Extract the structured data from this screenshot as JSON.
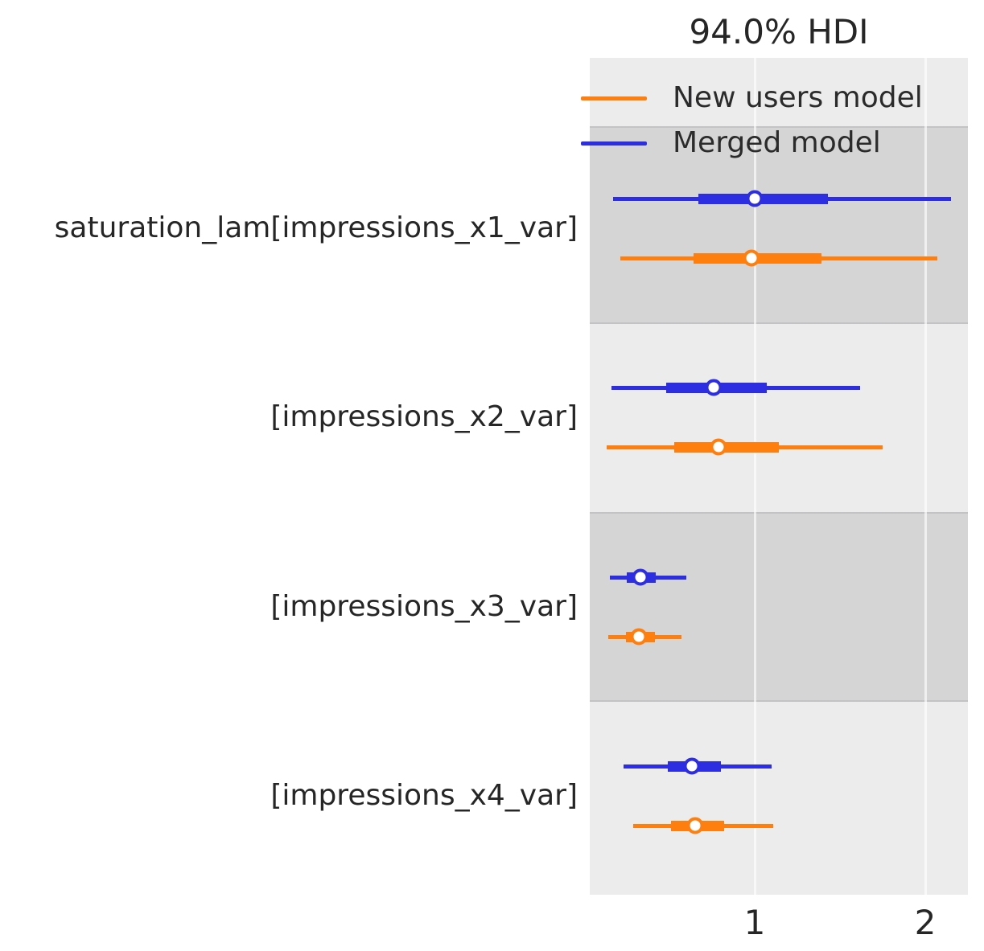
{
  "title": "94.0% HDI",
  "legend": {
    "items": [
      {
        "name": "New users model",
        "color": "#ff7f0e"
      },
      {
        "name": "Merged model",
        "color": "#2d2de1"
      }
    ]
  },
  "chart_data": {
    "type": "forest",
    "title": "94.0% HDI",
    "hdi_prob": "94.0%",
    "xlabel": "",
    "xticks": [
      1,
      2
    ],
    "xlim": [
      0.033,
      2.25
    ],
    "grid": "vertical white gridlines at ticks, alternating gray row bands",
    "legend_position": "top-right, no frame",
    "models": [
      "New users model",
      "Merged model"
    ],
    "colors": {
      "New users model": "#ff7f0e",
      "Merged model": "#2d2de1"
    },
    "rows": [
      {
        "label": "saturation_lam[impressions_x1_var]",
        "series": [
          {
            "model": "Merged model",
            "color": "#2d2de1",
            "hdi_94": [
              0.17,
              2.15
            ],
            "interquartile": [
              0.67,
              1.43
            ],
            "median": 1.0
          },
          {
            "model": "New users model",
            "color": "#ff7f0e",
            "hdi_94": [
              0.21,
              2.07
            ],
            "interquartile": [
              0.64,
              1.39
            ],
            "median": 0.98
          }
        ]
      },
      {
        "label": "[impressions_x2_var]",
        "series": [
          {
            "model": "Merged model",
            "color": "#2d2de1",
            "hdi_94": [
              0.16,
              1.62
            ],
            "interquartile": [
              0.48,
              1.07
            ],
            "median": 0.76
          },
          {
            "model": "New users model",
            "color": "#ff7f0e",
            "hdi_94": [
              0.13,
              1.75
            ],
            "interquartile": [
              0.53,
              1.14
            ],
            "median": 0.79
          }
        ]
      },
      {
        "label": "[impressions_x3_var]",
        "series": [
          {
            "model": "Merged model",
            "color": "#2d2de1",
            "hdi_94": [
              0.15,
              0.6
            ],
            "interquartile": [
              0.25,
              0.42
            ],
            "median": 0.33
          },
          {
            "model": "New users model",
            "color": "#ff7f0e",
            "hdi_94": [
              0.14,
              0.57
            ],
            "interquartile": [
              0.245,
              0.415
            ],
            "median": 0.32
          }
        ]
      },
      {
        "label": "[impressions_x4_var]",
        "series": [
          {
            "model": "Merged model",
            "color": "#2d2de1",
            "hdi_94": [
              0.23,
              1.1
            ],
            "interquartile": [
              0.49,
              0.8
            ],
            "median": 0.63
          },
          {
            "model": "New users model",
            "color": "#ff7f0e",
            "hdi_94": [
              0.29,
              1.11
            ],
            "interquartile": [
              0.51,
              0.82
            ],
            "median": 0.65
          }
        ]
      }
    ]
  }
}
